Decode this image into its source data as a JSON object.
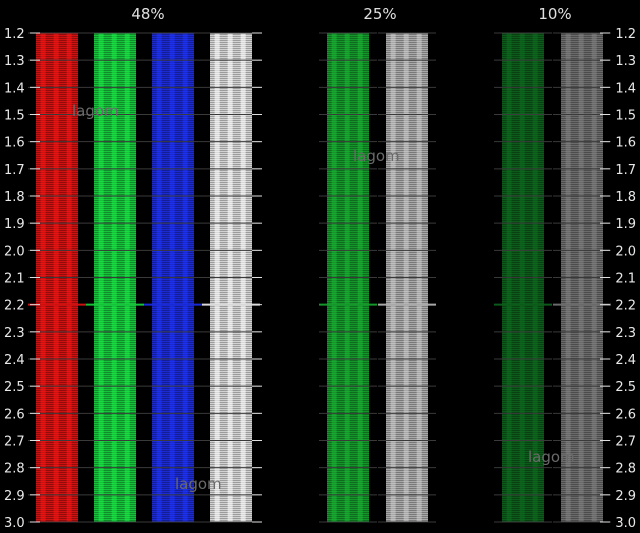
{
  "page": {
    "background": "#000000"
  },
  "groups": [
    {
      "label": "48%",
      "bars": [
        {
          "color_name": "red",
          "base": "#cc1111"
        },
        {
          "color_name": "green",
          "base": "#16c23a"
        },
        {
          "color_name": "blue",
          "base": "#1a2ad2"
        },
        {
          "color_name": "white",
          "base": "#d8d8d8"
        }
      ]
    },
    {
      "label": "25%",
      "bars": [
        {
          "color_name": "green",
          "base": "#15952a"
        },
        {
          "color_name": "white",
          "base": "#a8a8a8"
        }
      ]
    },
    {
      "label": "10%",
      "bars": [
        {
          "color_name": "green",
          "base": "#0c5a1a"
        },
        {
          "color_name": "white",
          "base": "#6a6a6a"
        }
      ]
    }
  ],
  "scale": {
    "min": 1.2,
    "max": 3.0,
    "step": 0.1,
    "labels": [
      "1.2",
      "1.3",
      "1.4",
      "1.5",
      "1.6",
      "1.7",
      "1.8",
      "1.9",
      "2.0",
      "2.1",
      "2.2",
      "2.3",
      "2.4",
      "2.5",
      "2.6",
      "2.7",
      "2.8",
      "2.9",
      "3.0"
    ],
    "highlight": 2.2
  },
  "watermarks": [
    "lagom",
    "lagom",
    "lagom",
    "lagom"
  ]
}
